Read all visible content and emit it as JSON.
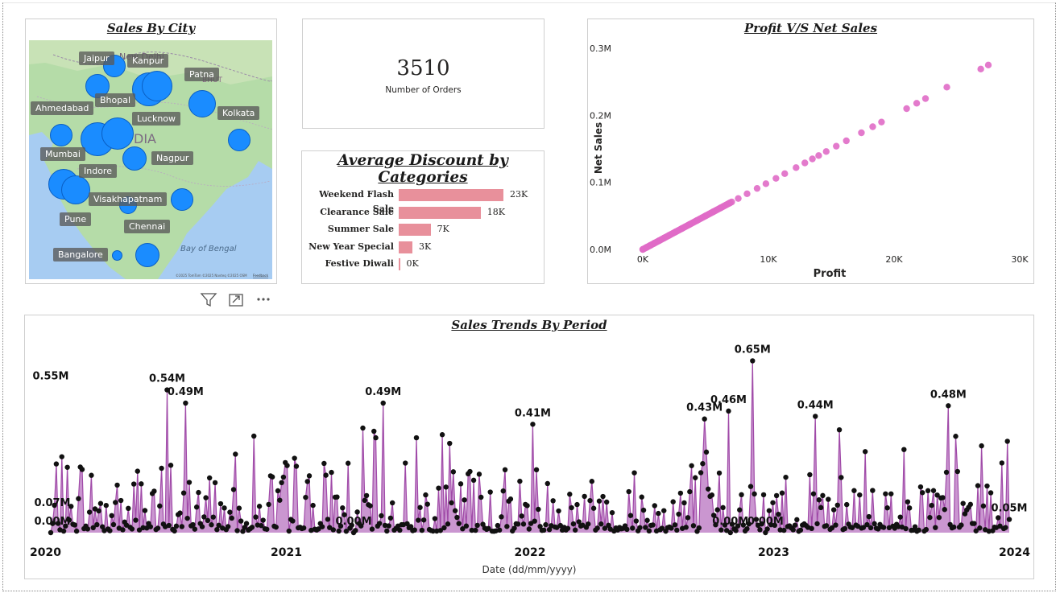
{
  "map": {
    "title": "Sales By City",
    "water_label": "Bay of Bengal",
    "country_label": "DIA",
    "region_labels": [
      "New Delhi",
      "BHUT"
    ],
    "attribution": "©2025 TomTom ©2025 Navteq ©2025 OSM",
    "feedback": "Feedback",
    "cities": [
      {
        "name": "Jaipur"
      },
      {
        "name": "Kanpur"
      },
      {
        "name": "Patna"
      },
      {
        "name": "Bhopal"
      },
      {
        "name": "Ahmedabad"
      },
      {
        "name": "Lucknow"
      },
      {
        "name": "Kolkata"
      },
      {
        "name": "Mumbai"
      },
      {
        "name": "Nagpur"
      },
      {
        "name": "Indore"
      },
      {
        "name": "Visakhapatnam"
      },
      {
        "name": "Pune"
      },
      {
        "name": "Chennai"
      },
      {
        "name": "Bangalore"
      }
    ]
  },
  "visual_header": {
    "icons": [
      "filter-icon",
      "focus-mode-icon",
      "more-options-icon"
    ]
  },
  "kpi": {
    "value": "3510",
    "label": "Number of Orders"
  },
  "discount": {
    "title": "Average Discount by Categories",
    "chart_data": {
      "type": "bar",
      "orientation": "horizontal",
      "categories": [
        "Weekend Flash Sale",
        "Clearance Sale",
        "Summer Sale",
        "New Year Special",
        "Festive Diwali"
      ],
      "values": [
        23000,
        18000,
        7000,
        3000,
        0
      ],
      "labels": [
        "23K",
        "18K",
        "7K",
        "3K",
        "0K"
      ],
      "color": "#e8909b"
    }
  },
  "scatter": {
    "title": "Profit V/S Net Sales",
    "chart_data": {
      "type": "scatter",
      "xlabel": "Profit",
      "ylabel": "Net Sales",
      "xlim": [
        0,
        30000
      ],
      "ylim": [
        0,
        300000
      ],
      "xticks": [
        "0K",
        "10K",
        "20K",
        "30K"
      ],
      "yticks": [
        "0.0M",
        "0.1M",
        "0.2M",
        "0.3M"
      ],
      "color": "#e06bc6",
      "x": [
        0,
        300,
        600,
        900,
        1300,
        1700,
        2100,
        2600,
        3100,
        3700,
        4300,
        5000,
        5600,
        6200,
        6900,
        7600,
        8300,
        9100,
        9800,
        10600,
        11300,
        12200,
        12900,
        13500,
        14000,
        14600,
        15400,
        16200,
        17400,
        18300,
        19000,
        21000,
        21800,
        22500,
        24200,
        26900,
        27500
      ],
      "y": [
        0,
        3000,
        6000,
        9000,
        13000,
        17000,
        21000,
        26000,
        31000,
        37000,
        43000,
        50000,
        56000,
        62000,
        69000,
        76000,
        83000,
        91000,
        98000,
        106000,
        113000,
        122000,
        129000,
        135000,
        140000,
        146000,
        154000,
        162000,
        174000,
        183000,
        190000,
        210000,
        218000,
        225000,
        242000,
        269000,
        275000
      ]
    }
  },
  "trend": {
    "title": "Sales Trends By Period",
    "chart_data": {
      "type": "line",
      "xlabel": "Date (dd/mm/yyyy)",
      "ylabel": "",
      "xticks": [
        "2020",
        "2021",
        "2022",
        "2023",
        "2024"
      ],
      "ylim": [
        0,
        0.7
      ],
      "unit": "M",
      "line_color": "#a04aa8",
      "area_color": "#c184c8",
      "n_points": 520,
      "peaks": [
        {
          "date": "2020-01-10",
          "value": 0.55,
          "label": "0.55M"
        },
        {
          "date": "2020-07-05",
          "value": 0.54,
          "label": "0.54M"
        },
        {
          "date": "2020-08-01",
          "value": 0.49,
          "label": "0.49M"
        },
        {
          "date": "2021-05-25",
          "value": 0.49,
          "label": "0.49M"
        },
        {
          "date": "2022-01-05",
          "value": 0.41,
          "label": "0.41M"
        },
        {
          "date": "2022-09-20",
          "value": 0.43,
          "label": "0.43M"
        },
        {
          "date": "2022-10-25",
          "value": 0.46,
          "label": "0.46M"
        },
        {
          "date": "2022-12-01",
          "value": 0.65,
          "label": "0.65M"
        },
        {
          "date": "2023-03-05",
          "value": 0.44,
          "label": "0.44M"
        },
        {
          "date": "2023-09-20",
          "value": 0.48,
          "label": "0.48M"
        }
      ],
      "low_labels": [
        {
          "date": "2020-01-01",
          "value": 0.07,
          "label": "0.07M"
        },
        {
          "date": "2020-01-05",
          "value": 0.0,
          "label": "0.00M"
        },
        {
          "date": "2021-04-10",
          "value": 0.0,
          "label": "0.00M"
        },
        {
          "date": "2022-10-28",
          "value": 0.0,
          "label": "0.00M"
        },
        {
          "date": "2022-12-20",
          "value": 0.0,
          "label": "0.00M"
        },
        {
          "date": "2023-12-20",
          "value": 0.05,
          "label": "0.05M"
        }
      ]
    }
  }
}
